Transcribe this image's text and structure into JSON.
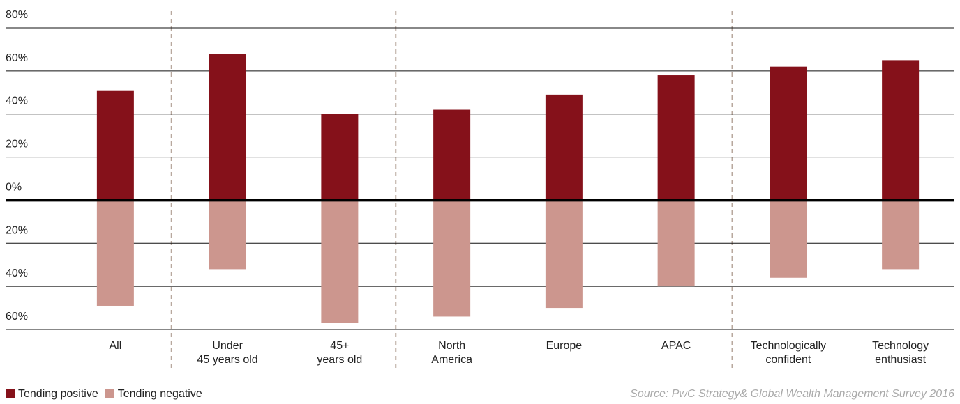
{
  "chart_data": {
    "type": "bar",
    "categories": [
      "All",
      "Under\n45 years old",
      "45+\nyears old",
      "North\nAmerica",
      "Europe",
      "APAC",
      "Technologically\nconfident",
      "Technology\nenthusiast"
    ],
    "series": [
      {
        "name": "Tending positive",
        "color": "#85111a",
        "values": [
          51,
          68,
          40,
          42,
          49,
          58,
          62,
          65
        ]
      },
      {
        "name": "Tending negative",
        "color": "#cc968e",
        "values": [
          -49,
          -32,
          -57,
          -54,
          -50,
          -40,
          -36,
          -32
        ]
      }
    ],
    "ylim": [
      -60,
      80
    ],
    "yticks": [
      {
        "value": 80,
        "label": "80%"
      },
      {
        "value": 60,
        "label": "60%"
      },
      {
        "value": 40,
        "label": "40%"
      },
      {
        "value": 20,
        "label": "20%"
      },
      {
        "value": 0,
        "label": "0%"
      },
      {
        "value": -20,
        "label": "20%"
      },
      {
        "value": -40,
        "label": "40%"
      },
      {
        "value": -60,
        "label": "60%"
      }
    ],
    "grid": true,
    "source": "Source: PwC Strategy& Global Wealth Management Survey 2016"
  }
}
